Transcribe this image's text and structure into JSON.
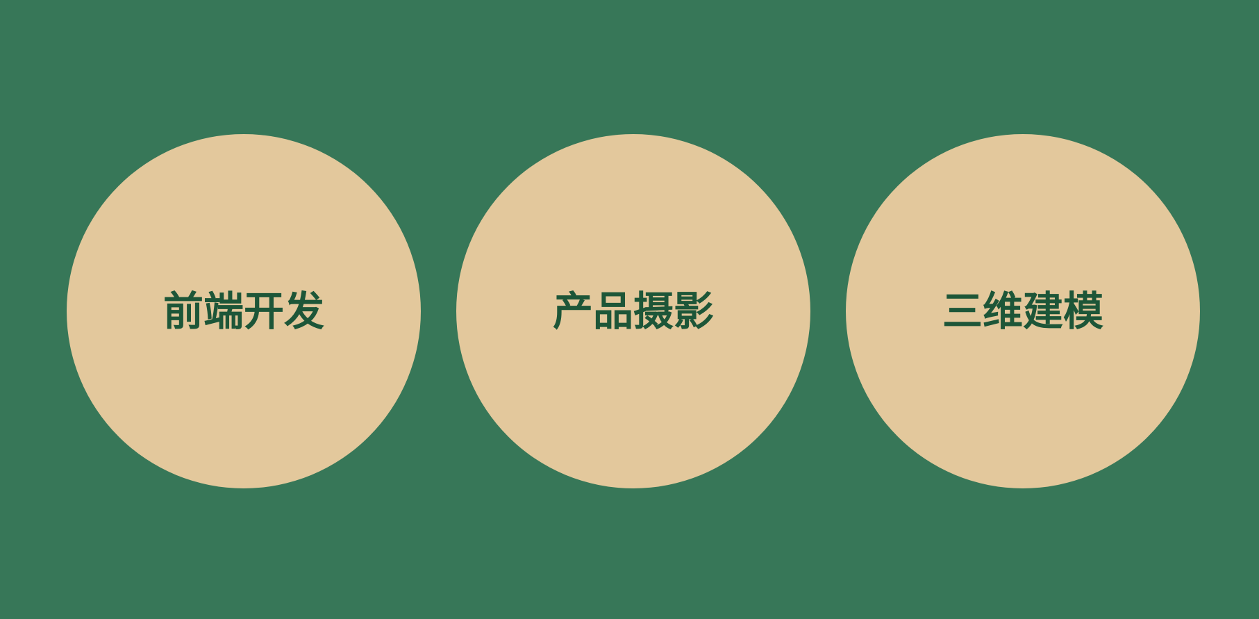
{
  "colors": {
    "background": "#377758",
    "circle_fill": "#e3c89c",
    "label_text": "#1d5638"
  },
  "items": [
    {
      "label": "前端开发"
    },
    {
      "label": "产品摄影"
    },
    {
      "label": "三维建模"
    }
  ]
}
